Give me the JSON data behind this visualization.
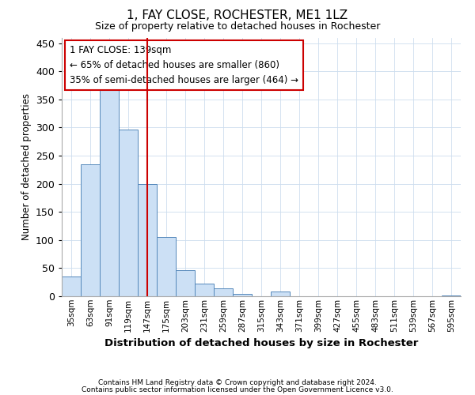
{
  "title": "1, FAY CLOSE, ROCHESTER, ME1 1LZ",
  "subtitle": "Size of property relative to detached houses in Rochester",
  "xlabel": "Distribution of detached houses by size in Rochester",
  "ylabel": "Number of detached properties",
  "categories": [
    "35sqm",
    "63sqm",
    "91sqm",
    "119sqm",
    "147sqm",
    "175sqm",
    "203sqm",
    "231sqm",
    "259sqm",
    "287sqm",
    "315sqm",
    "343sqm",
    "371sqm",
    "399sqm",
    "427sqm",
    "455sqm",
    "483sqm",
    "511sqm",
    "539sqm",
    "567sqm",
    "595sqm"
  ],
  "values": [
    35,
    235,
    367,
    297,
    199,
    105,
    46,
    22,
    14,
    4,
    0,
    9,
    0,
    0,
    0,
    0,
    0,
    0,
    0,
    0,
    2
  ],
  "bar_color": "#cce0f5",
  "bar_edge_color": "#5588bb",
  "vline_color": "#cc0000",
  "vline_x": 4,
  "ylim": [
    0,
    460
  ],
  "yticks": [
    0,
    50,
    100,
    150,
    200,
    250,
    300,
    350,
    400,
    450
  ],
  "annotation_line1": "1 FAY CLOSE: 139sqm",
  "annotation_line2": "← 65% of detached houses are smaller (860)",
  "annotation_line3": "35% of semi-detached houses are larger (464) →",
  "annotation_box_color": "#cc0000",
  "footer1": "Contains HM Land Registry data © Crown copyright and database right 2024.",
  "footer2": "Contains public sector information licensed under the Open Government Licence v3.0.",
  "background_color": "#ffffff",
  "grid_color": "#ccddee"
}
